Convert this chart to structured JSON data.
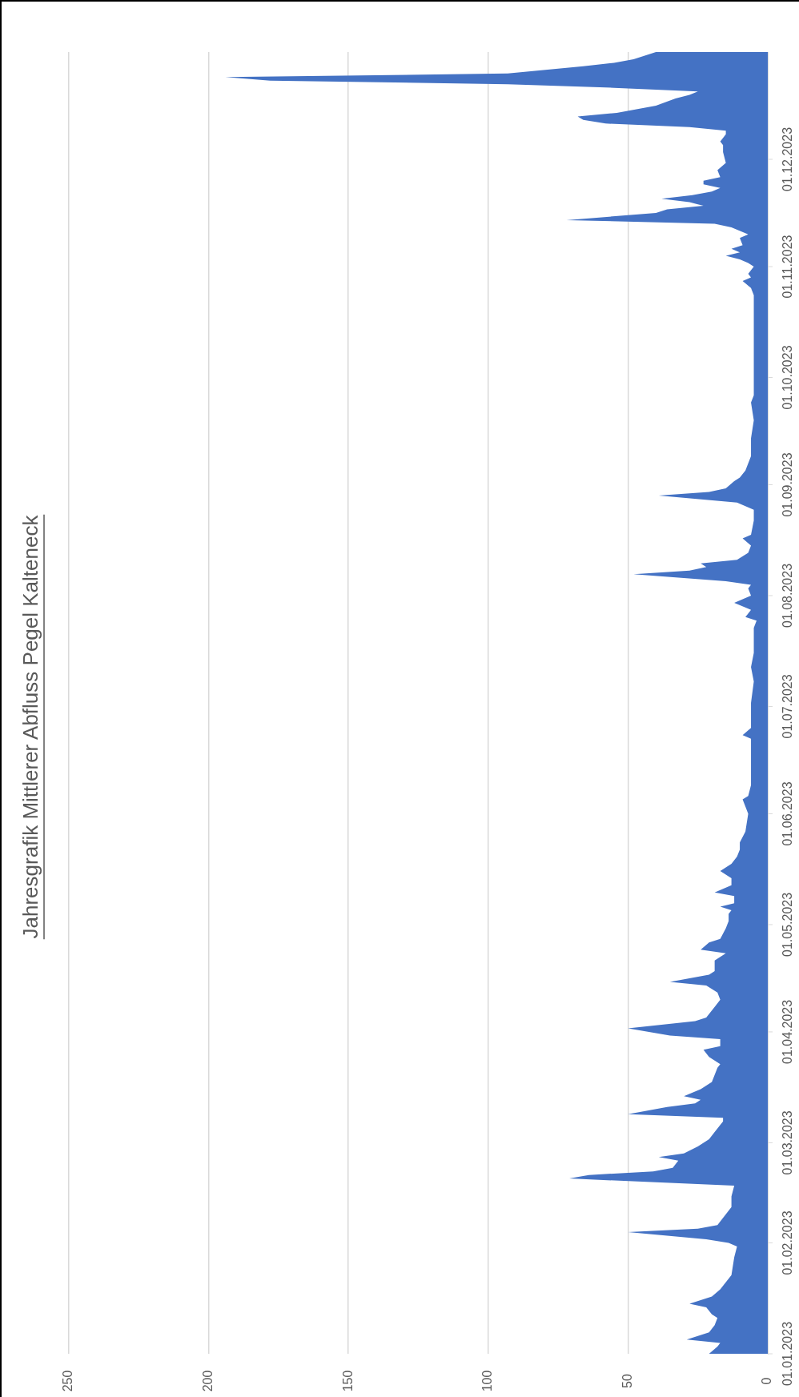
{
  "chart_data": {
    "type": "area",
    "orientation": "horizontal",
    "title": "Jahresgrafik Mittlerer Abfluss Pegel Kalteneck",
    "color": "#4472c4",
    "grid": "x",
    "x": [
      "2023-01-01",
      "2023-01-03",
      "2023-01-04",
      "2023-01-05",
      "2023-01-07",
      "2023-01-09",
      "2023-01-11",
      "2023-01-12",
      "2023-01-14",
      "2023-01-15",
      "2023-01-17",
      "2023-01-19",
      "2023-01-23",
      "2023-01-28",
      "2023-01-31",
      "2023-02-01",
      "2023-02-02",
      "2023-02-04",
      "2023-02-05",
      "2023-02-06",
      "2023-02-09",
      "2023-02-11",
      "2023-02-14",
      "2023-02-17",
      "2023-02-19",
      "2023-02-20",
      "2023-02-21",
      "2023-02-22",
      "2023-02-24",
      "2023-02-25",
      "2023-02-26",
      "2023-02-28",
      "2023-03-02",
      "2023-03-04",
      "2023-03-07",
      "2023-03-08",
      "2023-03-09",
      "2023-03-11",
      "2023-03-12",
      "2023-03-13",
      "2023-03-14",
      "2023-03-16",
      "2023-03-18",
      "2023-03-22",
      "2023-03-23",
      "2023-03-25",
      "2023-03-27",
      "2023-03-28",
      "2023-03-30",
      "2023-03-31",
      "2023-04-02",
      "2023-04-04",
      "2023-04-05",
      "2023-04-08",
      "2023-04-10",
      "2023-04-12",
      "2023-04-14",
      "2023-04-15",
      "2023-04-17",
      "2023-04-18",
      "2023-04-21",
      "2023-04-23",
      "2023-04-24",
      "2023-04-26",
      "2023-04-27",
      "2023-04-30",
      "2023-05-02",
      "2023-05-04",
      "2023-05-05",
      "2023-05-06",
      "2023-05-07",
      "2023-05-09",
      "2023-05-10",
      "2023-05-12",
      "2023-05-14",
      "2023-05-16",
      "2023-05-18",
      "2023-05-20",
      "2023-05-22",
      "2023-05-24",
      "2023-05-27",
      "2023-06-01",
      "2023-06-05",
      "2023-06-06",
      "2023-06-09",
      "2023-06-12",
      "2023-06-18",
      "2023-06-22",
      "2023-06-23",
      "2023-06-25",
      "2023-06-28",
      "2023-07-02",
      "2023-07-08",
      "2023-07-12",
      "2023-07-16",
      "2023-07-19",
      "2023-07-23",
      "2023-07-25",
      "2023-07-26",
      "2023-07-28",
      "2023-07-30",
      "2023-08-01",
      "2023-08-03",
      "2023-08-04",
      "2023-08-05",
      "2023-08-07",
      "2023-08-08",
      "2023-08-09",
      "2023-08-10",
      "2023-08-11",
      "2023-08-13",
      "2023-08-15",
      "2023-08-17",
      "2023-08-18",
      "2023-08-22",
      "2023-08-25",
      "2023-08-27",
      "2023-08-29",
      "2023-08-30",
      "2023-08-31",
      "2023-09-02",
      "2023-09-03",
      "2023-09-05",
      "2023-09-09",
      "2023-09-14",
      "2023-09-19",
      "2023-09-24",
      "2023-09-26",
      "2023-09-30",
      "2023-10-05",
      "2023-10-11",
      "2023-10-16",
      "2023-10-20",
      "2023-10-24",
      "2023-10-26",
      "2023-10-28",
      "2023-10-29",
      "2023-10-30",
      "2023-11-01",
      "2023-11-02",
      "2023-11-03",
      "2023-11-04",
      "2023-11-05",
      "2023-11-06",
      "2023-11-07",
      "2023-11-09",
      "2023-11-10",
      "2023-11-12",
      "2023-11-13",
      "2023-11-14",
      "2023-11-16",
      "2023-11-17",
      "2023-11-18",
      "2023-11-19",
      "2023-11-20",
      "2023-11-21",
      "2023-11-22",
      "2023-11-23",
      "2023-11-24",
      "2023-11-25",
      "2023-11-26",
      "2023-11-28",
      "2023-11-30",
      "2023-12-03",
      "2023-12-05",
      "2023-12-06",
      "2023-12-08",
      "2023-12-09",
      "2023-12-10",
      "2023-12-11",
      "2023-12-12",
      "2023-12-13",
      "2023-12-14",
      "2023-12-16",
      "2023-12-18",
      "2023-12-19",
      "2023-12-20",
      "2023-12-21",
      "2023-12-22",
      "2023-12-23",
      "2023-12-24",
      "2023-12-25",
      "2023-12-27",
      "2023-12-28",
      "2023-12-29",
      "2023-12-31"
    ],
    "values": [
      21,
      18,
      17,
      29,
      21,
      19,
      18,
      20,
      22,
      28,
      20,
      17,
      13,
      12,
      11,
      14,
      22,
      50,
      25,
      18,
      15,
      13,
      13,
      12,
      71,
      64,
      41,
      34,
      32,
      39,
      30,
      25,
      21,
      19,
      16,
      16,
      50,
      36,
      26,
      24,
      30,
      24,
      20,
      18,
      17,
      21,
      23,
      17,
      17,
      35,
      50,
      26,
      22,
      19,
      17,
      18,
      22,
      35,
      21,
      19,
      19,
      15,
      24,
      21,
      17,
      15,
      14,
      14,
      13,
      17,
      12,
      12,
      19,
      13,
      13,
      17,
      13,
      11,
      10,
      10,
      8,
      7,
      9,
      7,
      6,
      6,
      6,
      6,
      9,
      6,
      6,
      6,
      5,
      6,
      5,
      5,
      5,
      4,
      8,
      6,
      12,
      6,
      7,
      6,
      15,
      48,
      28,
      22,
      24,
      11,
      7,
      6,
      9,
      6,
      5,
      5,
      11,
      39,
      21,
      15,
      12,
      10,
      8,
      6,
      6,
      5,
      6,
      5,
      5,
      5,
      5,
      5,
      5,
      5,
      6,
      9,
      6,
      7,
      5,
      7,
      10,
      15,
      10,
      13,
      9,
      10,
      7,
      13,
      19,
      72,
      40,
      36,
      23,
      28,
      38,
      27,
      20,
      17,
      23,
      23,
      17,
      18,
      15,
      16,
      16,
      17,
      15,
      15,
      28,
      58,
      66,
      68,
      54,
      40,
      33,
      28,
      25,
      55,
      93,
      178,
      194,
      93,
      66,
      55,
      48,
      40
    ],
    "xlim": [
      250,
      0
    ],
    "xticks": [
      250,
      200,
      150,
      100,
      50,
      0
    ],
    "ylim": [
      "2023-01-01",
      "2023-12-31"
    ],
    "yticks": [
      {
        "value": "2023-01-01",
        "label": "01.01.2023"
      },
      {
        "value": "2023-02-01",
        "label": "01.02.2023"
      },
      {
        "value": "2023-03-01",
        "label": "01.03.2023"
      },
      {
        "value": "2023-04-01",
        "label": "01.04.2023"
      },
      {
        "value": "2023-05-01",
        "label": "01.05.2023"
      },
      {
        "value": "2023-06-01",
        "label": "01.06.2023"
      },
      {
        "value": "2023-07-01",
        "label": "01.07.2023"
      },
      {
        "value": "2023-08-01",
        "label": "01.08.2023"
      },
      {
        "value": "2023-09-01",
        "label": "01.09.2023"
      },
      {
        "value": "2023-10-01",
        "label": "01.10.2023"
      },
      {
        "value": "2023-11-01",
        "label": "01.11.2023"
      },
      {
        "value": "2023-12-01",
        "label": "01.12.2023"
      }
    ]
  }
}
